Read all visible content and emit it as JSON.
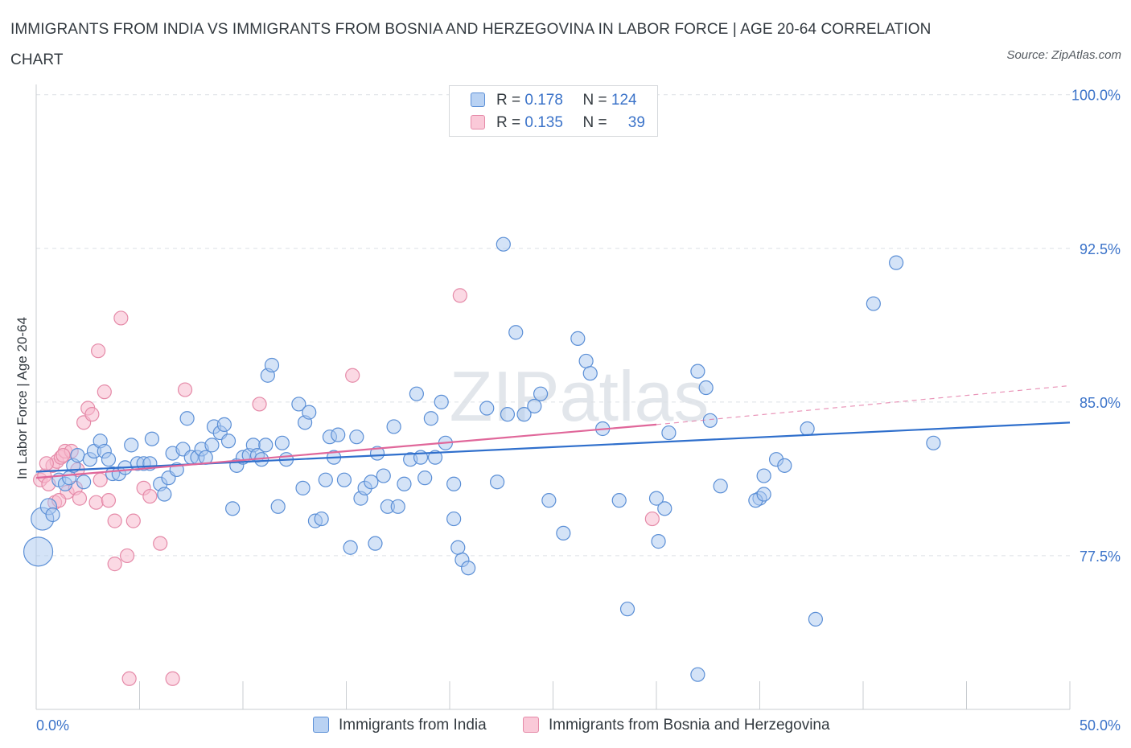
{
  "title": "IMMIGRANTS FROM INDIA VS IMMIGRANTS FROM BOSNIA AND HERZEGOVINA IN LABOR FORCE | AGE 20-64 CORRELATION CHART",
  "source": "Source: ZipAtlas.com",
  "watermark": "ZIPatlas",
  "legend": {
    "india": {
      "r_label": "R =",
      "r_value": "0.178",
      "n_label": "N =",
      "n_value": "124"
    },
    "bosnia": {
      "r_label": "R =",
      "r_value": "0.135",
      "n_label": "N =",
      "n_value": "39"
    }
  },
  "colors": {
    "india_fill": "#a9c8f0",
    "india_stroke": "#5b8fd6",
    "india_line": "#2f6fcc",
    "bosnia_fill": "#f7b9cd",
    "bosnia_stroke": "#e58aa8",
    "bosnia_line": "#e0679a",
    "axis_text": "#3b73c9",
    "grid": "#dde1e5"
  },
  "chart_data": {
    "type": "scatter",
    "title": "IMMIGRANTS FROM INDIA VS IMMIGRANTS FROM BOSNIA AND HERZEGOVINA IN LABOR FORCE | AGE 20-64 CORRELATION CHART",
    "xlabel": "",
    "ylabel": "In Labor Force | Age 20-64",
    "xlim": [
      0,
      50
    ],
    "ylim": [
      70,
      100.5
    ],
    "x_tick_labels": [
      "0.0%",
      "50.0%"
    ],
    "y_ticks": [
      77.5,
      85.0,
      92.5,
      100.0
    ],
    "y_tick_labels": [
      "77.5%",
      "85.0%",
      "92.5%",
      "100.0%"
    ],
    "grid": "horizontal dashed",
    "legend_position": "top-center",
    "series": [
      {
        "name": "Immigrants from India",
        "r": 0.178,
        "n": 124,
        "trend": {
          "x0": 0,
          "y0": 81.6,
          "x1": 50,
          "y1": 84.0
        },
        "points": [
          [
            0.1,
            77.7
          ],
          [
            0.3,
            79.3
          ],
          [
            0.6,
            79.9
          ],
          [
            0.8,
            79.5
          ],
          [
            1.1,
            81.2
          ],
          [
            1.4,
            81.0
          ],
          [
            1.6,
            81.3
          ],
          [
            1.8,
            81.9
          ],
          [
            2.0,
            82.4
          ],
          [
            2.3,
            81.1
          ],
          [
            2.6,
            82.2
          ],
          [
            2.8,
            82.6
          ],
          [
            3.1,
            83.1
          ],
          [
            3.3,
            82.6
          ],
          [
            3.5,
            82.2
          ],
          [
            3.7,
            81.5
          ],
          [
            4.0,
            81.5
          ],
          [
            4.3,
            81.8
          ],
          [
            4.6,
            82.9
          ],
          [
            4.9,
            82.0
          ],
          [
            5.2,
            82.0
          ],
          [
            5.5,
            82.0
          ],
          [
            5.6,
            83.2
          ],
          [
            6.0,
            81.0
          ],
          [
            6.2,
            80.5
          ],
          [
            6.4,
            81.3
          ],
          [
            6.6,
            82.5
          ],
          [
            6.8,
            81.7
          ],
          [
            7.1,
            82.7
          ],
          [
            7.3,
            84.2
          ],
          [
            7.5,
            82.3
          ],
          [
            7.8,
            82.3
          ],
          [
            8.0,
            82.7
          ],
          [
            8.2,
            82.3
          ],
          [
            8.5,
            82.9
          ],
          [
            8.6,
            83.8
          ],
          [
            8.9,
            83.5
          ],
          [
            9.1,
            83.9
          ],
          [
            9.3,
            83.1
          ],
          [
            9.5,
            79.8
          ],
          [
            9.7,
            81.9
          ],
          [
            10.0,
            82.3
          ],
          [
            10.3,
            82.4
          ],
          [
            10.5,
            82.9
          ],
          [
            10.7,
            82.4
          ],
          [
            10.9,
            82.2
          ],
          [
            11.1,
            82.9
          ],
          [
            11.2,
            86.3
          ],
          [
            11.4,
            86.8
          ],
          [
            11.7,
            79.9
          ],
          [
            11.9,
            83.0
          ],
          [
            12.1,
            82.2
          ],
          [
            12.7,
            84.9
          ],
          [
            12.9,
            80.8
          ],
          [
            13.0,
            84.0
          ],
          [
            13.2,
            84.5
          ],
          [
            13.5,
            79.2
          ],
          [
            13.8,
            79.3
          ],
          [
            14.0,
            81.2
          ],
          [
            14.2,
            83.3
          ],
          [
            14.4,
            82.3
          ],
          [
            14.6,
            83.4
          ],
          [
            14.9,
            81.2
          ],
          [
            15.2,
            77.9
          ],
          [
            15.5,
            83.3
          ],
          [
            15.7,
            80.3
          ],
          [
            15.9,
            80.8
          ],
          [
            16.2,
            81.1
          ],
          [
            16.4,
            78.1
          ],
          [
            16.5,
            82.5
          ],
          [
            16.8,
            81.4
          ],
          [
            17.0,
            79.9
          ],
          [
            17.3,
            83.8
          ],
          [
            17.5,
            79.9
          ],
          [
            17.8,
            81.0
          ],
          [
            18.1,
            82.2
          ],
          [
            18.4,
            85.4
          ],
          [
            18.6,
            82.3
          ],
          [
            18.8,
            81.3
          ],
          [
            19.1,
            84.2
          ],
          [
            19.3,
            82.3
          ],
          [
            19.6,
            85.0
          ],
          [
            19.8,
            83.0
          ],
          [
            20.2,
            81.0
          ],
          [
            20.6,
            77.3
          ],
          [
            20.9,
            76.9
          ],
          [
            20.4,
            77.9
          ],
          [
            21.8,
            84.7
          ],
          [
            22.3,
            81.1
          ],
          [
            22.8,
            84.4
          ],
          [
            23.2,
            88.4
          ],
          [
            23.6,
            84.4
          ],
          [
            24.1,
            84.8
          ],
          [
            24.4,
            85.4
          ],
          [
            24.8,
            80.2
          ],
          [
            25.5,
            78.6
          ],
          [
            26.2,
            88.1
          ],
          [
            26.6,
            87.0
          ],
          [
            26.8,
            86.4
          ],
          [
            27.4,
            83.7
          ],
          [
            28.2,
            80.2
          ],
          [
            28.6,
            74.9
          ],
          [
            30.1,
            78.2
          ],
          [
            30.6,
            83.5
          ],
          [
            32.0,
            86.5
          ],
          [
            32.4,
            85.7
          ],
          [
            30.4,
            79.8
          ],
          [
            30.0,
            80.3
          ],
          [
            32.6,
            84.1
          ],
          [
            33.1,
            80.9
          ],
          [
            35.2,
            81.4
          ],
          [
            35.8,
            82.2
          ],
          [
            36.2,
            81.9
          ],
          [
            35.0,
            80.3
          ],
          [
            34.8,
            80.2
          ],
          [
            37.3,
            83.7
          ],
          [
            37.7,
            74.4
          ],
          [
            40.5,
            89.8
          ],
          [
            41.6,
            91.8
          ],
          [
            43.4,
            83.0
          ],
          [
            20.2,
            79.3
          ],
          [
            22.6,
            92.7
          ],
          [
            32.0,
            71.7
          ],
          [
            35.2,
            80.5
          ]
        ]
      },
      {
        "name": "Immigrants from Bosnia and Herzegovina",
        "r": 0.135,
        "n": 39,
        "trend": {
          "x0": 0,
          "y0": 81.3,
          "x1": 30,
          "y1": 83.9
        },
        "trend_extension": {
          "x0": 30,
          "y0": 83.9,
          "x1": 50,
          "y1": 85.8
        },
        "points": [
          [
            0.2,
            81.2
          ],
          [
            0.4,
            81.4
          ],
          [
            0.6,
            81.0
          ],
          [
            0.8,
            81.9
          ],
          [
            1.0,
            82.1
          ],
          [
            1.2,
            82.3
          ],
          [
            1.4,
            82.6
          ],
          [
            1.5,
            80.6
          ],
          [
            1.7,
            82.6
          ],
          [
            1.9,
            80.8
          ],
          [
            2.1,
            80.3
          ],
          [
            2.3,
            84.0
          ],
          [
            2.5,
            84.7
          ],
          [
            2.7,
            84.4
          ],
          [
            2.9,
            80.1
          ],
          [
            3.1,
            81.2
          ],
          [
            3.3,
            85.5
          ],
          [
            3.5,
            80.2
          ],
          [
            3.8,
            79.2
          ],
          [
            4.1,
            89.1
          ],
          [
            4.4,
            77.5
          ],
          [
            4.7,
            79.2
          ],
          [
            5.2,
            80.8
          ],
          [
            5.5,
            80.4
          ],
          [
            6.0,
            78.1
          ],
          [
            6.6,
            71.5
          ],
          [
            7.2,
            85.6
          ],
          [
            10.8,
            84.9
          ],
          [
            15.3,
            86.3
          ],
          [
            20.5,
            90.2
          ],
          [
            29.8,
            79.3
          ],
          [
            0.9,
            80.1
          ],
          [
            1.3,
            82.4
          ],
          [
            2.0,
            81.7
          ],
          [
            3.8,
            77.1
          ],
          [
            4.5,
            71.5
          ],
          [
            0.5,
            82.0
          ],
          [
            1.1,
            80.2
          ],
          [
            3.0,
            87.5
          ]
        ]
      }
    ]
  },
  "bottom_legend": {
    "india_label": "Immigrants from India",
    "bosnia_label": "Immigrants from Bosnia and Herzegovina"
  }
}
